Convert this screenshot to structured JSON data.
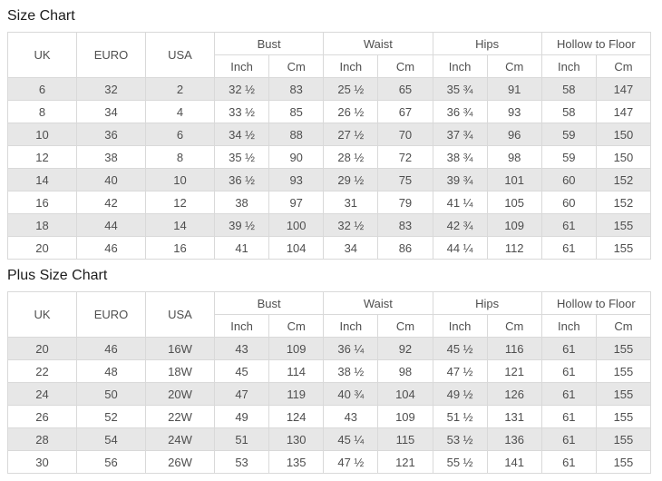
{
  "colors": {
    "row_alt_background": "#e7e7e7",
    "table_border": "#d9d9d9",
    "cell_text": "#4f4f4f",
    "title_text": "#1c1c1c",
    "page_background": "#ffffff"
  },
  "chart_data": [
    {
      "type": "table",
      "title": "Size Chart",
      "simple_headers": [
        "UK",
        "EURO",
        "USA"
      ],
      "group_headers": [
        "Bust",
        "Waist",
        "Hips",
        "Hollow to Floor"
      ],
      "sub_headers": [
        "Inch",
        "Cm"
      ],
      "rows": [
        [
          "6",
          "32",
          "2",
          "32 ½",
          "83",
          "25 ½",
          "65",
          "35 ¾",
          "91",
          "58",
          "147"
        ],
        [
          "8",
          "34",
          "4",
          "33 ½",
          "85",
          "26 ½",
          "67",
          "36 ¾",
          "93",
          "58",
          "147"
        ],
        [
          "10",
          "36",
          "6",
          "34 ½",
          "88",
          "27 ½",
          "70",
          "37 ¾",
          "96",
          "59",
          "150"
        ],
        [
          "12",
          "38",
          "8",
          "35 ½",
          "90",
          "28 ½",
          "72",
          "38 ¾",
          "98",
          "59",
          "150"
        ],
        [
          "14",
          "40",
          "10",
          "36 ½",
          "93",
          "29 ½",
          "75",
          "39 ¾",
          "101",
          "60",
          "152"
        ],
        [
          "16",
          "42",
          "12",
          "38",
          "97",
          "31",
          "79",
          "41 ¼",
          "105",
          "60",
          "152"
        ],
        [
          "18",
          "44",
          "14",
          "39 ½",
          "100",
          "32 ½",
          "83",
          "42 ¾",
          "109",
          "61",
          "155"
        ],
        [
          "20",
          "46",
          "16",
          "41",
          "104",
          "34",
          "86",
          "44 ¼",
          "112",
          "61",
          "155"
        ]
      ]
    },
    {
      "type": "table",
      "title": "Plus Size Chart",
      "simple_headers": [
        "UK",
        "EURO",
        "USA"
      ],
      "group_headers": [
        "Bust",
        "Waist",
        "Hips",
        "Hollow to Floor"
      ],
      "sub_headers": [
        "Inch",
        "Cm"
      ],
      "rows": [
        [
          "20",
          "46",
          "16W",
          "43",
          "109",
          "36 ¼",
          "92",
          "45 ½",
          "116",
          "61",
          "155"
        ],
        [
          "22",
          "48",
          "18W",
          "45",
          "114",
          "38 ½",
          "98",
          "47 ½",
          "121",
          "61",
          "155"
        ],
        [
          "24",
          "50",
          "20W",
          "47",
          "119",
          "40 ¾",
          "104",
          "49 ½",
          "126",
          "61",
          "155"
        ],
        [
          "26",
          "52",
          "22W",
          "49",
          "124",
          "43",
          "109",
          "51 ½",
          "131",
          "61",
          "155"
        ],
        [
          "28",
          "54",
          "24W",
          "51",
          "130",
          "45 ¼",
          "115",
          "53 ½",
          "136",
          "61",
          "155"
        ],
        [
          "30",
          "56",
          "26W",
          "53",
          "135",
          "47 ½",
          "121",
          "55 ½",
          "141",
          "61",
          "155"
        ]
      ]
    }
  ]
}
